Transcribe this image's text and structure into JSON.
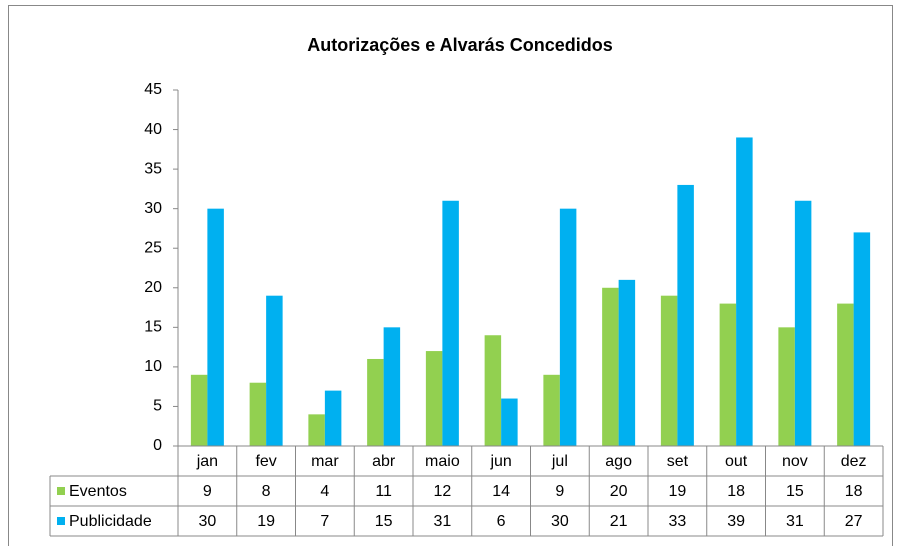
{
  "chart_data": {
    "type": "bar",
    "title": "Autorizações e Alvarás Concedidos",
    "categories": [
      "jan",
      "fev",
      "mar",
      "abr",
      "maio",
      "jun",
      "jul",
      "ago",
      "set",
      "out",
      "nov",
      "dez"
    ],
    "series": [
      {
        "name": "Eventos",
        "color": "#92d050",
        "values": [
          9,
          8,
          4,
          11,
          12,
          14,
          9,
          20,
          19,
          18,
          15,
          18
        ]
      },
      {
        "name": "Publicidade",
        "color": "#00b0f0",
        "values": [
          30,
          19,
          7,
          15,
          31,
          6,
          30,
          21,
          33,
          39,
          31,
          27
        ]
      }
    ],
    "ylim": [
      0,
      45
    ],
    "yticks": [
      0,
      5,
      10,
      15,
      20,
      25,
      30,
      35,
      40,
      45
    ],
    "grid": false,
    "data_table": true
  }
}
